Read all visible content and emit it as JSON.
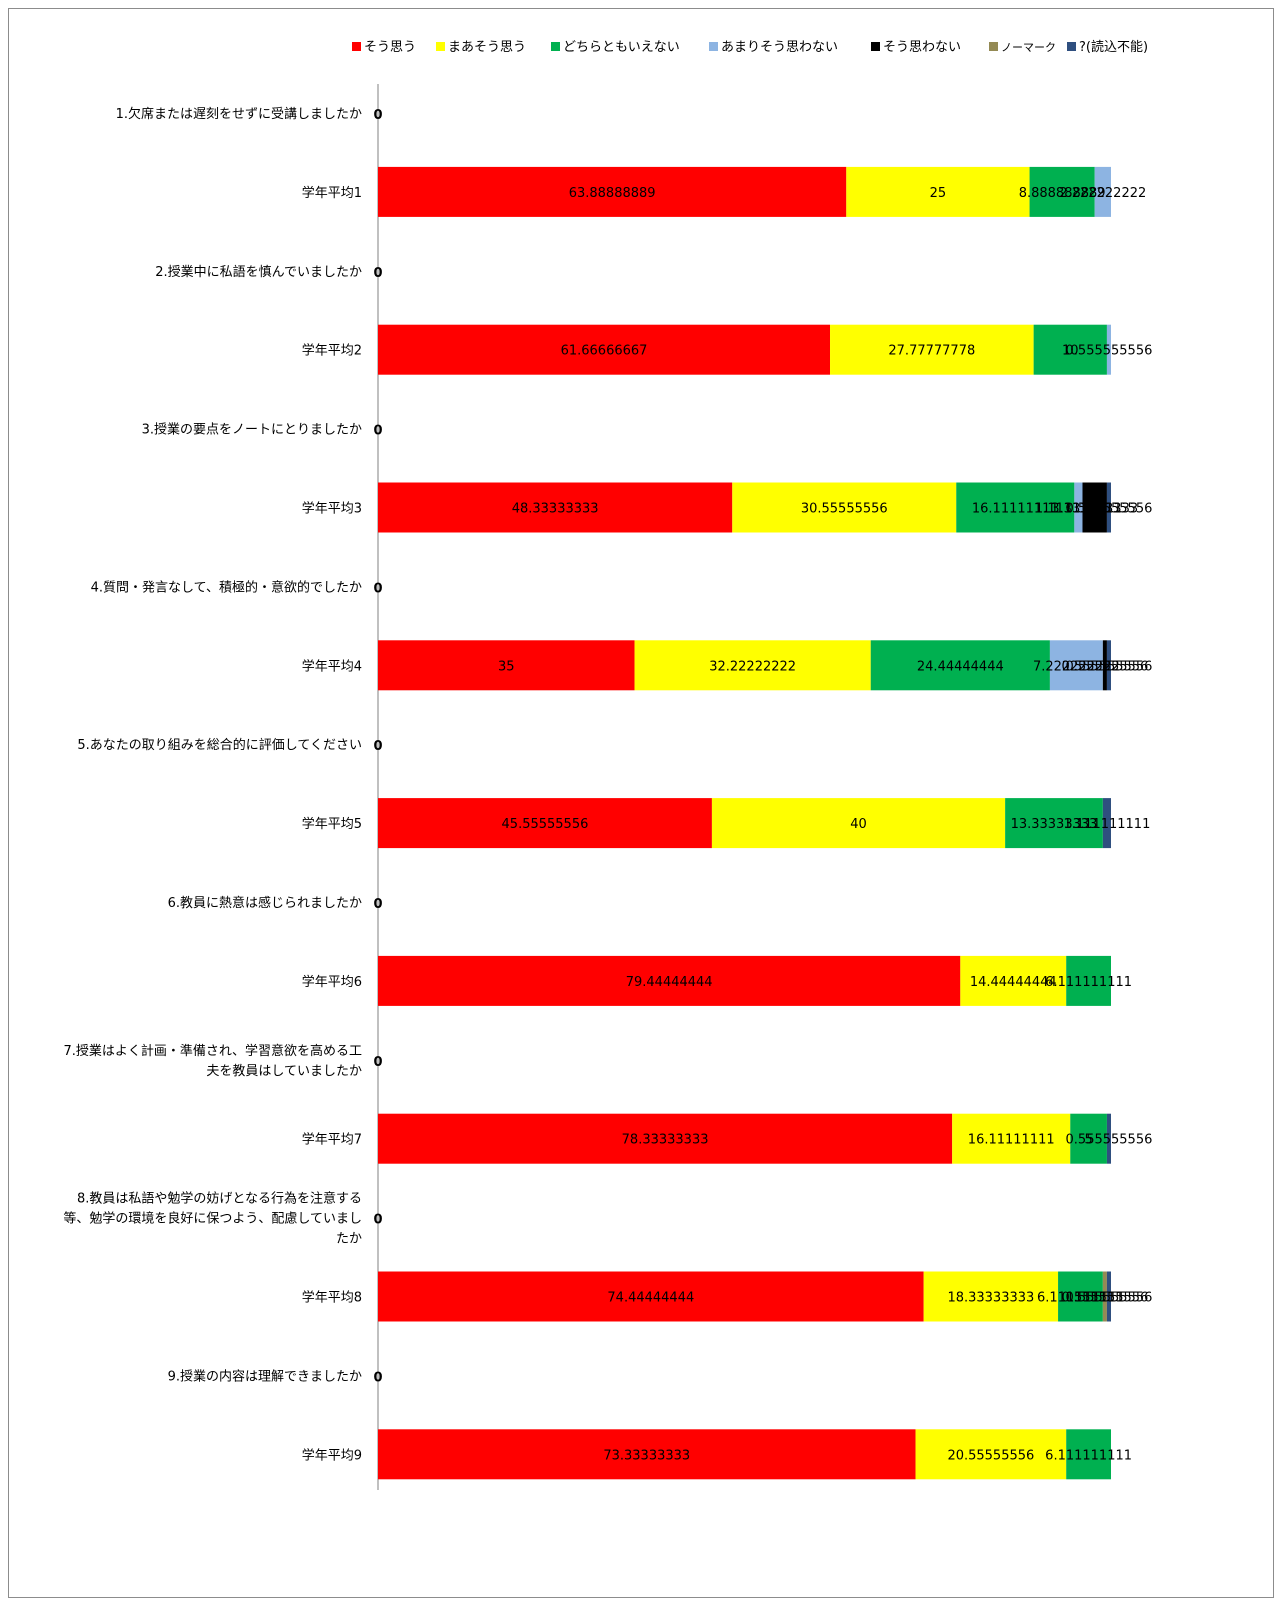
{
  "chart_data": {
    "type": "bar",
    "orientation": "horizontal",
    "stacked": true,
    "title": "",
    "xlabel": "",
    "ylabel": "",
    "xlim": [
      0,
      100
    ],
    "grid": false,
    "legend_position": "top",
    "categories": [
      "1.欠席または遅刻をせずに受講しましたか",
      "学年平均1",
      "2.授業中に私語を慎んでいましたか",
      "学年平均2",
      "3.授業の要点をノートにとりましたか",
      "学年平均3",
      "4.質問・発言なして、積極的・意欲的でしたか",
      "学年平均4",
      "5.あなたの取り組みを総合的に評価してください",
      "学年平均5",
      "6.教員に熱意は感じられましたか",
      "学年平均6",
      "7.授業はよく計画・準備され、学習意欲を高める工夫を教員はしていましたか",
      "学年平均7",
      "8.教員は私語や勉学の妨げとなる行為を注意する等、勉学の環境を良好に保つよう、配慮していましたか",
      "学年平均8",
      "9.授業の内容は理解できましたか",
      "学年平均9"
    ],
    "category_lines": [
      [
        "1.欠席または遅刻をせずに受講しましたか"
      ],
      [
        "学年平均1"
      ],
      [
        "2.授業中に私語を慎んでいましたか"
      ],
      [
        "学年平均2"
      ],
      [
        "3.授業の要点をノートにとりましたか"
      ],
      [
        "学年平均3"
      ],
      [
        "4.質問・発言なして、積極的・意欲的でしたか"
      ],
      [
        "学年平均4"
      ],
      [
        "5.あなたの取り組みを総合的に評価してください"
      ],
      [
        "学年平均5"
      ],
      [
        "6.教員に熱意は感じられましたか"
      ],
      [
        "学年平均6"
      ],
      [
        "7.授業はよく計画・準備され、学習意欲を高める工",
        "夫を教員はしていましたか"
      ],
      [
        "学年平均7"
      ],
      [
        "8.教員は私語や勉学の妨げとなる行為を注意する",
        "等、勉学の環境を良好に保つよう、配慮していまし",
        "たか"
      ],
      [
        "学年平均8"
      ],
      [
        "9.授業の内容は理解できましたか"
      ],
      [
        "学年平均9"
      ]
    ],
    "zero_label": "0",
    "series": [
      {
        "name": "そう思う",
        "color": "#ff0000",
        "values": [
          0,
          63.88888889,
          0,
          61.66666667,
          0,
          48.33333333,
          0,
          35,
          0,
          45.55555556,
          0,
          79.44444444,
          0,
          78.33333333,
          0,
          74.44444444,
          0,
          73.33333333
        ],
        "labels": [
          "",
          "63.88888889",
          "",
          "61.66666667",
          "",
          "48.33333333",
          "",
          "35",
          "",
          "45.55555556",
          "",
          "79.44444444",
          "",
          "78.33333333",
          "",
          "74.44444444",
          "",
          "73.33333333"
        ]
      },
      {
        "name": "まあそう思う",
        "color": "#ffff00",
        "values": [
          0,
          25,
          0,
          27.77777778,
          0,
          30.55555556,
          0,
          32.22222222,
          0,
          40,
          0,
          14.44444444,
          0,
          16.11111111,
          0,
          18.33333333,
          0,
          20.55555556
        ],
        "labels": [
          "",
          "25",
          "",
          "27.77777778",
          "",
          "30.55555556",
          "",
          "32.22222222",
          "",
          "40",
          "",
          "14.44444444",
          "",
          "16.11111111",
          "",
          "18.33333333",
          "",
          "20.55555556"
        ]
      },
      {
        "name": "どちらともいえない",
        "color": "#00b050",
        "values": [
          0,
          8.888888889,
          0,
          10,
          0,
          16.11111111,
          0,
          24.44444444,
          0,
          13.33333333,
          0,
          6.111111111,
          0,
          5,
          0,
          6.111111111,
          0,
          6.111111111
        ],
        "labels": [
          "",
          "8.888888889",
          "",
          "10",
          "",
          "16.11111111",
          "",
          "24.44444444",
          "",
          "13.33333333",
          "",
          "6.111111111",
          "",
          "5",
          "",
          "6.111111111",
          "",
          "6.111111111"
        ]
      },
      {
        "name": "あまりそう思わない",
        "color": "#8db4e2",
        "values": [
          0,
          2.222222222,
          0,
          0.555555556,
          0,
          1.111111111,
          0,
          7.222222222,
          0,
          0,
          0,
          0,
          0,
          0,
          0,
          0,
          0,
          0
        ],
        "labels": [
          "",
          "2.222222222",
          "",
          "0.555555556",
          "",
          "1.111111111",
          "",
          "7.222222222",
          "",
          "",
          "",
          "",
          "",
          "",
          "",
          "",
          "",
          ""
        ]
      },
      {
        "name": "そう思わない",
        "color": "#000000",
        "values": [
          0,
          0,
          0,
          0,
          0,
          3.333333333,
          0,
          0.555555556,
          0,
          0,
          0,
          0,
          0,
          0,
          0,
          0,
          0,
          0
        ],
        "labels": [
          "",
          "",
          "",
          "",
          "",
          "3.333333333",
          "",
          "0.555555556",
          "",
          "",
          "",
          "",
          "",
          "",
          "",
          "",
          "",
          ""
        ]
      },
      {
        "name": "ノーマーク",
        "color": "#948a54",
        "values": [
          0,
          0,
          0,
          0,
          0,
          0,
          0,
          0,
          0,
          0,
          0,
          0,
          0,
          0,
          0,
          0.555555556,
          0,
          0
        ],
        "labels": [
          "",
          "",
          "",
          "",
          "",
          "",
          "",
          "",
          "",
          "",
          "",
          "",
          "",
          "",
          "",
          "0.555555556",
          "",
          ""
        ]
      },
      {
        "name": "?(読込不能)",
        "color": "#2f4f7f",
        "values": [
          0,
          0,
          0,
          0,
          0,
          0.555555556,
          0,
          0.555555556,
          0,
          1.111111111,
          0,
          0,
          0,
          0.555555556,
          0,
          0.555555556,
          0,
          0
        ],
        "labels": [
          "",
          "",
          "",
          "",
          "",
          "0.555555556",
          "",
          "0.555555556",
          "",
          "1.111111111",
          "",
          "",
          "",
          "0.555555556",
          "",
          "0.555555556",
          "",
          ""
        ]
      }
    ]
  }
}
